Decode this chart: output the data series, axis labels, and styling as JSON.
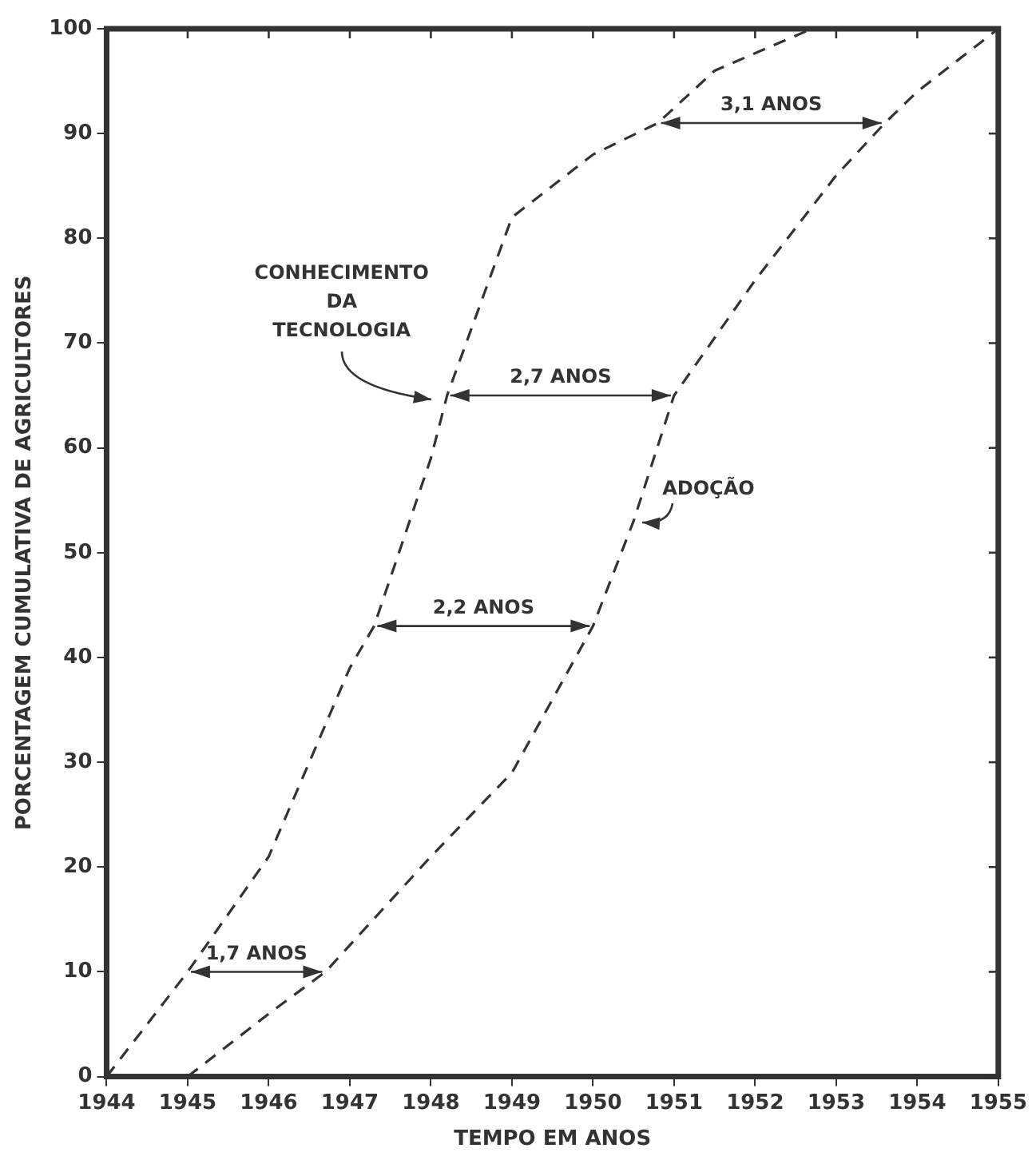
{
  "chart_data": {
    "type": "line",
    "xlabel": "TEMPO EM ANOS",
    "ylabel": "PORCENTAGEM CUMULATIVA DE AGRICULTORES",
    "xlim": [
      1944,
      1955
    ],
    "xticks": [
      1944,
      1945,
      1946,
      1947,
      1948,
      1949,
      1950,
      1951,
      1952,
      1953,
      1954,
      1955
    ],
    "ylim": [
      0,
      100
    ],
    "yticks": [
      0,
      10,
      20,
      30,
      40,
      50,
      60,
      70,
      80,
      90,
      100
    ],
    "grid": false,
    "legend": false,
    "marker": "none",
    "line_style": "dashed",
    "series": [
      {
        "name": "CONHECIMENTO DA TECNOLOGIA",
        "color": "#333333",
        "x": [
          1944,
          1945,
          1946,
          1947,
          1947.3,
          1948,
          1948.2,
          1949,
          1950,
          1950.8,
          1951.5,
          1952.7
        ],
        "values": [
          0,
          10,
          21,
          39,
          43,
          59,
          65,
          82,
          88,
          91,
          96,
          100
        ]
      },
      {
        "name": "ADOÇÃO",
        "color": "#333333",
        "x": [
          1945,
          1946,
          1946.7,
          1948,
          1949,
          1950,
          1950.5,
          1951,
          1952,
          1953,
          1953.6,
          1954,
          1955
        ],
        "values": [
          0,
          6,
          10,
          21,
          29,
          43,
          53,
          65,
          76,
          86,
          91,
          94,
          100
        ]
      }
    ],
    "annotations": [
      "1,7 ANOS",
      "2,2 ANOS",
      "2,7 ANOS",
      "3,1 ANOS"
    ]
  }
}
